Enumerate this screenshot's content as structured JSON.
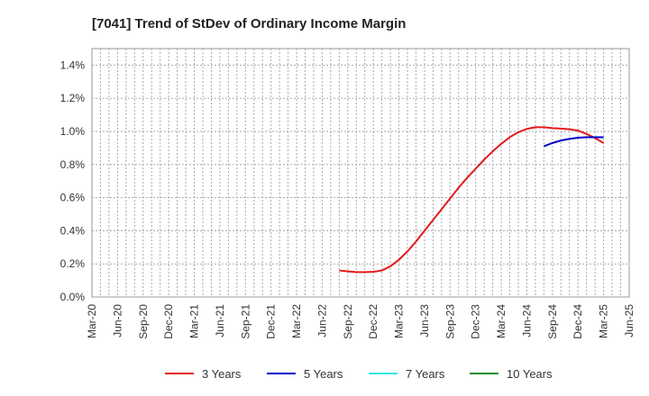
{
  "chart_data": {
    "type": "line",
    "title": "[7041]  Trend of StDev of Ordinary Income Margin",
    "xlabel": "",
    "ylabel": "",
    "x_ticks": [
      "Mar-20",
      "Jun-20",
      "Sep-20",
      "Dec-20",
      "Mar-21",
      "Jun-21",
      "Sep-21",
      "Dec-21",
      "Mar-22",
      "Jun-22",
      "Sep-22",
      "Dec-22",
      "Mar-23",
      "Jun-23",
      "Sep-23",
      "Dec-23",
      "Mar-24",
      "Jun-24",
      "Sep-24",
      "Dec-24",
      "Mar-25",
      "Jun-25"
    ],
    "y_ticks": [
      "0.0%",
      "0.2%",
      "0.4%",
      "0.6%",
      "0.8%",
      "1.0%",
      "1.2%",
      "1.4%"
    ],
    "ylim": [
      0,
      1.5
    ],
    "grid": true,
    "legend_position": "bottom",
    "series": [
      {
        "name": "3 Years",
        "color": "#e31a1c",
        "x": [
          "Aug-22",
          "Sep-22",
          "Oct-22",
          "Nov-22",
          "Dec-22",
          "Jan-23",
          "Feb-23",
          "Mar-23",
          "Apr-23",
          "May-23",
          "Jun-23",
          "Jul-23",
          "Aug-23",
          "Sep-23",
          "Oct-23",
          "Nov-23",
          "Dec-23",
          "Jan-24",
          "Feb-24",
          "Mar-24",
          "Apr-24",
          "May-24",
          "Jun-24",
          "Jul-24",
          "Aug-24",
          "Sep-24",
          "Oct-24",
          "Nov-24",
          "Dec-24",
          "Jan-25",
          "Feb-25",
          "Mar-25"
        ],
        "values": [
          0.16,
          0.155,
          0.15,
          0.15,
          0.152,
          0.16,
          0.185,
          0.225,
          0.275,
          0.335,
          0.4,
          0.465,
          0.53,
          0.595,
          0.66,
          0.72,
          0.775,
          0.83,
          0.88,
          0.925,
          0.965,
          0.995,
          1.015,
          1.025,
          1.025,
          1.02,
          1.017,
          1.013,
          1.005,
          0.985,
          0.96,
          0.93
        ]
      },
      {
        "name": "5 Years",
        "color": "#0000cc",
        "x": [
          "Aug-24",
          "Sep-24",
          "Oct-24",
          "Nov-24",
          "Dec-24",
          "Jan-25",
          "Feb-25",
          "Mar-25"
        ],
        "values": [
          0.91,
          0.93,
          0.945,
          0.955,
          0.962,
          0.965,
          0.965,
          0.965
        ]
      },
      {
        "name": "7 Years",
        "color": "#33e6e6",
        "x": [],
        "values": []
      },
      {
        "name": "10 Years",
        "color": "#228b22",
        "x": [],
        "values": []
      }
    ]
  }
}
